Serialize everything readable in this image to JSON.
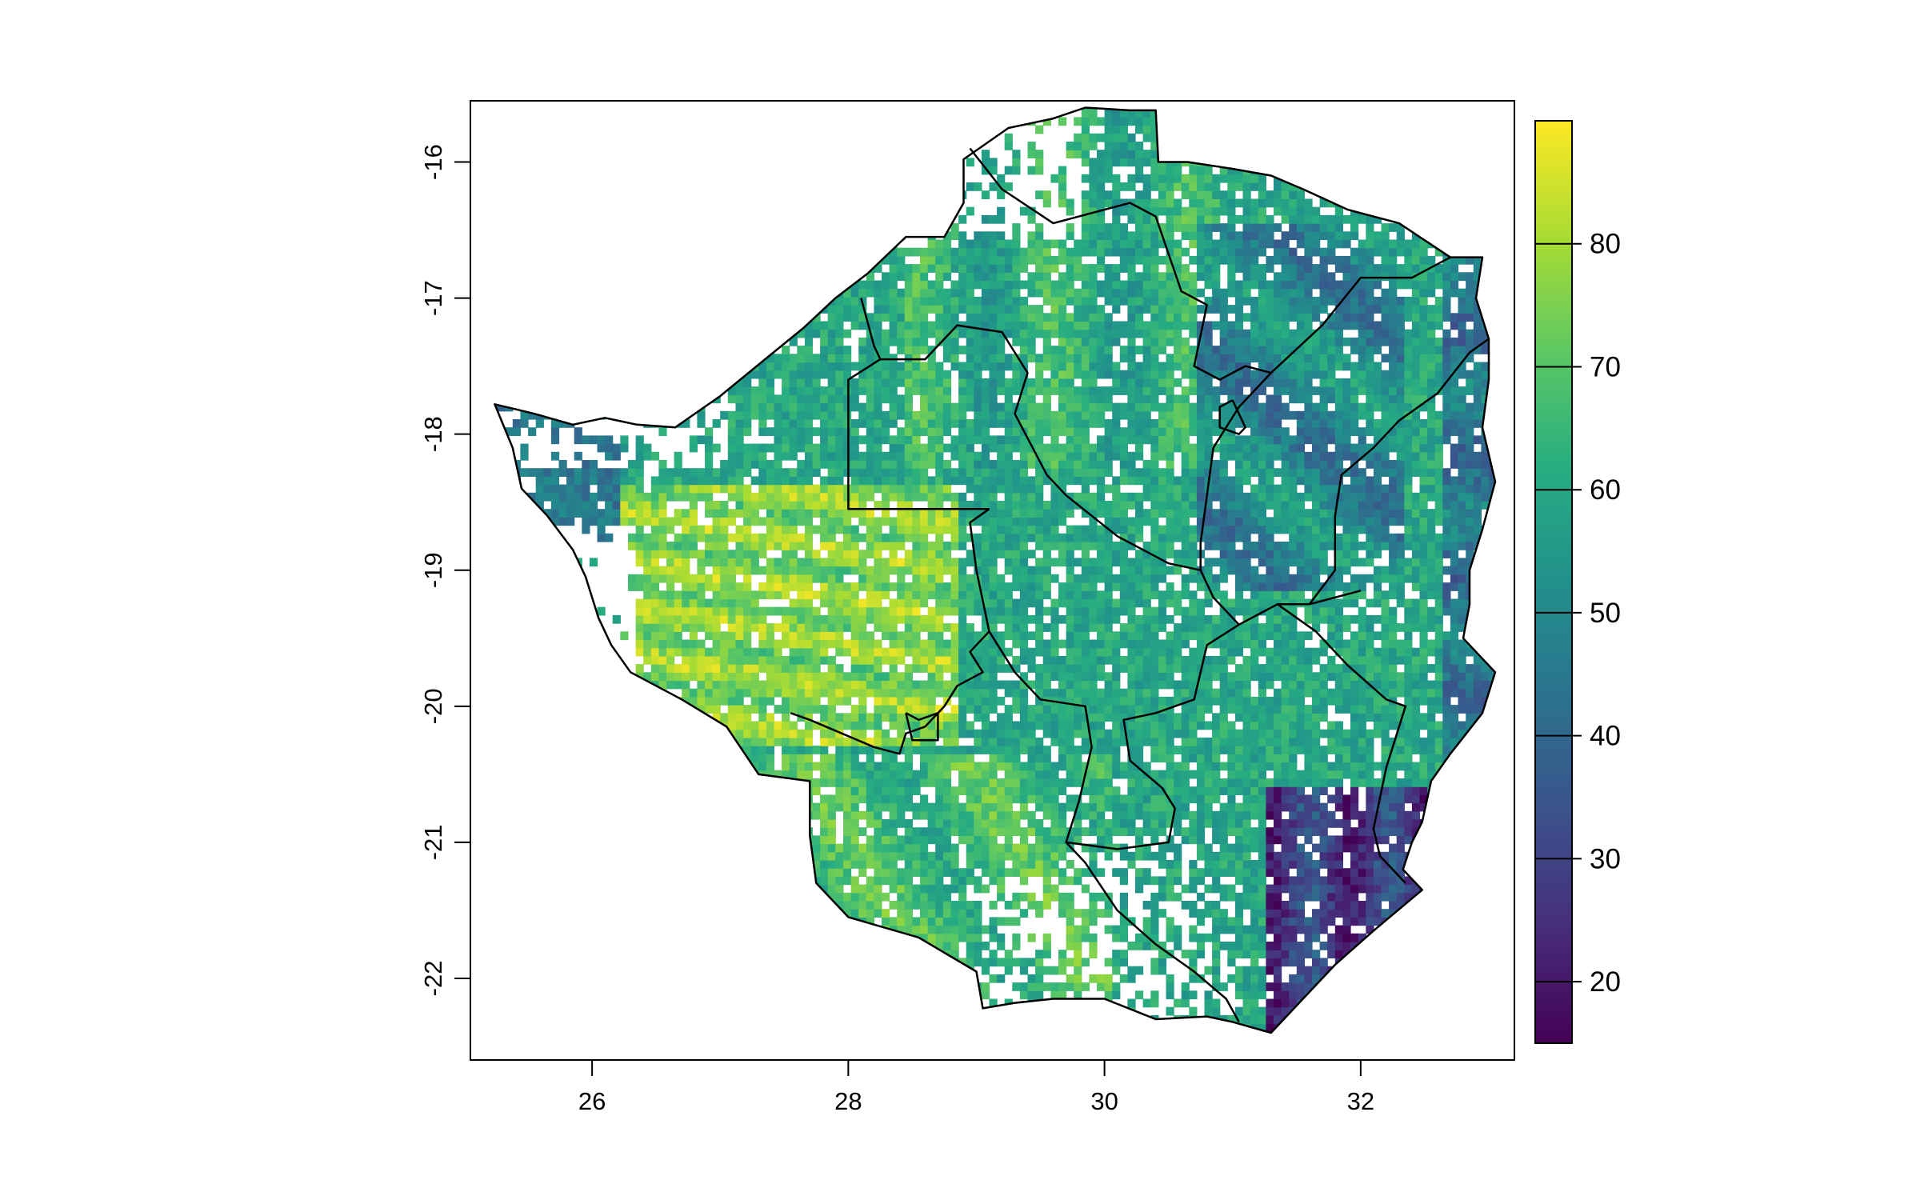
{
  "map": {
    "x_axis_ticks": [
      "26",
      "28",
      "30",
      "32"
    ],
    "y_axis_ticks": [
      "-16",
      "-17",
      "-18",
      "-19",
      "-20",
      "-21",
      "-22"
    ],
    "x_range": [
      25.05,
      33.2
    ],
    "y_range": [
      -22.6,
      -15.55
    ],
    "legend": {
      "ticks": [
        "20",
        "30",
        "40",
        "50",
        "60",
        "70",
        "80"
      ],
      "min": 15,
      "max": 90,
      "palette": "viridis",
      "colors": [
        "#440154",
        "#472D7B",
        "#3B528B",
        "#2C728E",
        "#21908C",
        "#27AD81",
        "#5DC863",
        "#AADC32",
        "#FDE725"
      ]
    }
  },
  "chart_data": {
    "type": "heatmap",
    "title": "",
    "xlabel": "",
    "ylabel": "",
    "xlim": [
      25.05,
      33.2
    ],
    "ylim": [
      -22.6,
      -15.55
    ],
    "value_range": [
      15,
      90
    ],
    "colorbar_ticks": [
      20,
      30,
      40,
      50,
      60,
      70,
      80
    ]
  }
}
